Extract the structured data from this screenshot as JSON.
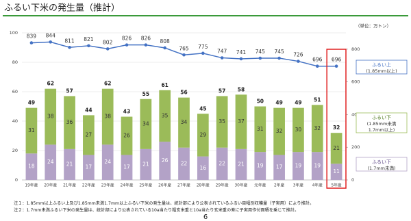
{
  "title": "ふるい下米の発生量（推計）",
  "unit_note": "（単位：万トン）",
  "footnotes": [
    "注１：1.85mm以上ふるい上及び1.85mm未満1.7mm以上ふるい下米の発生量は、統計部により公表されているふるい目幅別収穫量（子実用）により推計。",
    "注２：1.7mm未満ふるい下米の発生量は、統計部により公表されている10a当たり粗玄米重と10a当たり玄米重の差に子実用作付面積を乗じて推計。"
  ],
  "page_number": "6",
  "chart_data": {
    "type": "bar",
    "stacked": true,
    "categories": [
      "19年産",
      "20年産",
      "21年産",
      "22年産",
      "23年産",
      "24年産",
      "25年産",
      "26年産",
      "27年産",
      "28年産",
      "29年産",
      "30年産",
      "元年産",
      "2年産",
      "3年産",
      "4年産",
      "5年産"
    ],
    "series": [
      {
        "name": "ふるい下",
        "sublabel": [
          "(1.7mm未満)"
        ],
        "color": "#b3a2c7",
        "label_color": "#ffffff",
        "values": [
          18,
          24,
          21,
          17,
          24,
          17,
          21,
          26,
          22,
          16,
          22,
          21,
          19,
          17,
          19,
          19,
          11
        ]
      },
      {
        "name": "ふるい下",
        "sublabel": [
          "(1.85mm未満",
          "1.7mm以上)"
        ],
        "color": "#9bbb59",
        "label_color": "#333333",
        "values": [
          31,
          38,
          36,
          27,
          38,
          26,
          34,
          35,
          34,
          29,
          35,
          37,
          31,
          32,
          30,
          32,
          21
        ]
      },
      {
        "name": "ふるい上",
        "sublabel": [
          "(1.85mm以上)"
        ],
        "type": "line",
        "axis": "y2",
        "color": "#4472c4",
        "label_color": "#333333",
        "values": [
          839,
          844,
          811,
          821,
          802,
          826,
          826,
          808,
          765,
          775,
          747,
          741,
          745,
          745,
          726,
          696,
          696
        ]
      }
    ],
    "stack_totals": [
      49,
      62,
      57,
      44,
      62,
      43,
      55,
      61,
      56,
      45,
      57,
      58,
      50,
      49,
      49,
      51,
      32
    ],
    "ylim": [
      0,
      100
    ],
    "yticks": [
      0,
      20,
      40,
      60,
      80,
      100
    ],
    "y2lim": [
      0,
      900
    ],
    "y2ticks": [
      0,
      200,
      400,
      600,
      800
    ],
    "grid": true,
    "highlight": {
      "category": 16,
      "color": "#e02020"
    }
  }
}
